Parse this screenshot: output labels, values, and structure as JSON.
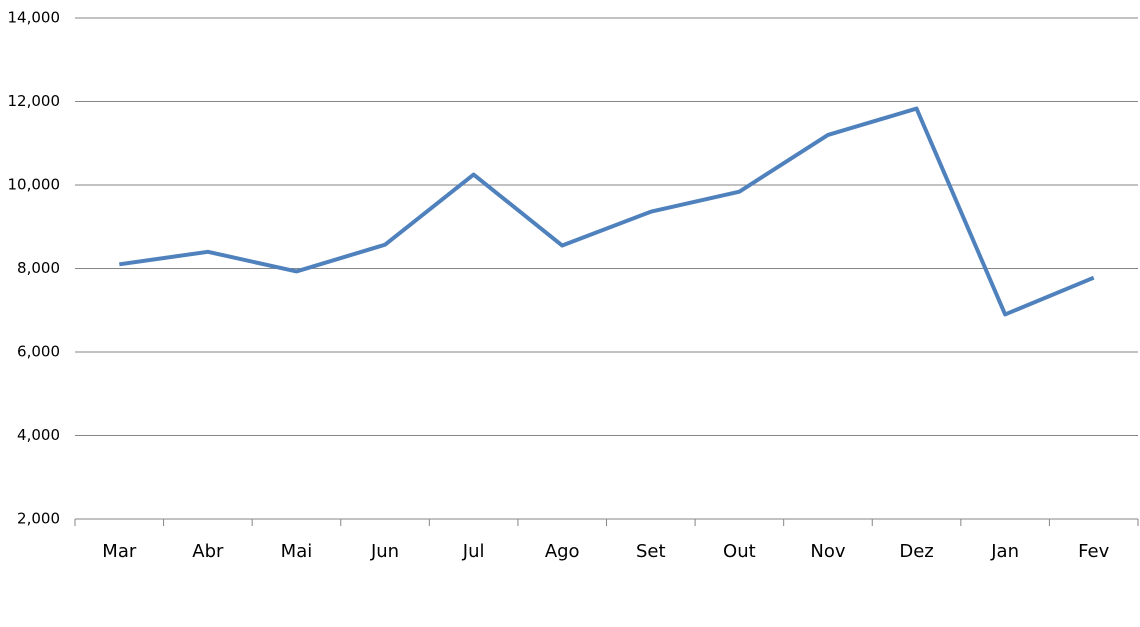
{
  "chart_data": {
    "type": "line",
    "categories": [
      "Mar",
      "Abr",
      "Mai",
      "Jun",
      "Jul",
      "Ago",
      "Set",
      "Out",
      "Nov",
      "Dez",
      "Jan",
      "Fev"
    ],
    "series": [
      {
        "color": "#4f81bd",
        "values": [
          8100,
          8400,
          7930,
          8570,
          10250,
          8550,
          9360,
          9840,
          11200,
          11830,
          6900,
          7780
        ]
      }
    ],
    "ylim": [
      2000,
      14000
    ],
    "yticks": [
      {
        "value": 2000,
        "label": "2,000"
      },
      {
        "value": 4000,
        "label": "4,000"
      },
      {
        "value": 6000,
        "label": "6,000"
      },
      {
        "value": 8000,
        "label": "8,000"
      },
      {
        "value": 10000,
        "label": "10,000"
      },
      {
        "value": 12000,
        "label": "12,000"
      },
      {
        "value": 14000,
        "label": "14,000"
      }
    ],
    "grid": true
  }
}
